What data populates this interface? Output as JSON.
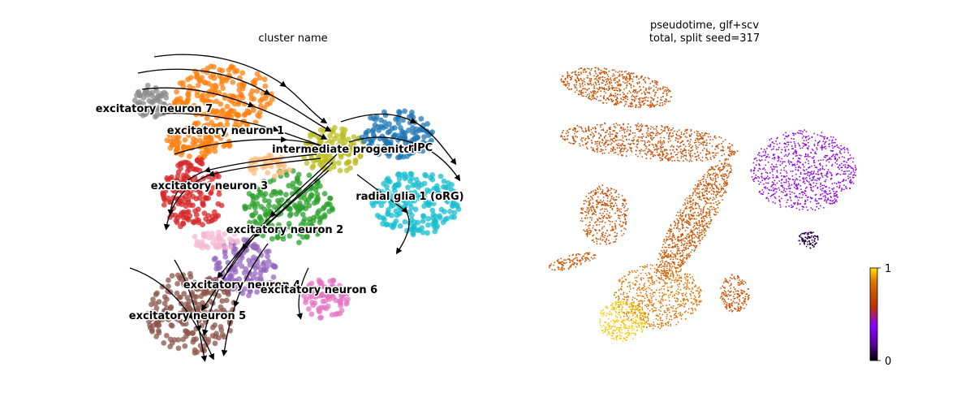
{
  "chart_data": [
    {
      "type": "scatter",
      "plot_kind": "umap-embedding-with-velocity-streamlines",
      "title": "cluster name",
      "axes_visible": false,
      "grid": false,
      "legend": "on-data",
      "clusters": [
        {
          "name": "excitatory neuron 7",
          "color": "#8c8c8c"
        },
        {
          "name": "excitatory neuron 1",
          "color": "#ff7f0e"
        },
        {
          "name": "intermediate progenitor",
          "color": "#bcbd22"
        },
        {
          "name": "radial glia 1 (oRG)",
          "color": "#17becf"
        },
        {
          "name": "excitatory neuron 3",
          "color": "#d62728"
        },
        {
          "name": "excitatory neuron 2",
          "color": "#2ca02c"
        },
        {
          "name": "excitatory neuron 4",
          "color": "#9467bd"
        },
        {
          "name": "excitatory neuron 6",
          "color": "#e377c2"
        },
        {
          "name": "excitatory neuron 5",
          "color": "#8c564b"
        },
        {
          "name": "",
          "color": "#1f77b4"
        },
        {
          "name": "",
          "color": "#ffbb78"
        },
        {
          "name": "",
          "color": "#f7b6d2"
        }
      ],
      "labels": [
        "excitatory neuron 7",
        "excitatory neuron 1",
        "intermediate progenitor",
        "rIPC",
        "excitatory neuron 3",
        "radial glia 1 (oRG)",
        "excitatory neuron 2",
        "excitatory neuron 4",
        "excitatory neuron 6",
        "excitatory neuron 5"
      ],
      "streamline_color": "#000000"
    },
    {
      "type": "scatter",
      "plot_kind": "umap-embedding-colored-by-continuous-value",
      "title": "pseudotime, glf+scv",
      "subtitle": "total, split seed=317",
      "axes_visible": false,
      "grid": false,
      "colormap": "gnuplot",
      "colormap_stops": [
        "#000000",
        "#5b00a0",
        "#8800ff",
        "#c03000",
        "#c85000",
        "#e07a00",
        "#ffe000"
      ],
      "colorbar": {
        "min": 0,
        "max": 1,
        "tick_labels": [
          "0",
          "1"
        ],
        "placement": "bottom-right"
      },
      "region_values": [
        {
          "region": "top arm",
          "value": 0.72
        },
        {
          "region": "middle arm",
          "value": 0.7
        },
        {
          "region": "left lobe",
          "value": 0.72
        },
        {
          "region": "bottom-left tail",
          "value": 0.74
        },
        {
          "region": "central diagonal",
          "value": 0.74
        },
        {
          "region": "bottom mass",
          "value": 0.84
        },
        {
          "region": "bottom tip",
          "value": 0.97
        },
        {
          "region": "bottom-right blob",
          "value": 0.72
        },
        {
          "region": "right progenitor region",
          "value": 0.4
        },
        {
          "region": "right-lower island",
          "value": 0.08
        }
      ]
    }
  ]
}
